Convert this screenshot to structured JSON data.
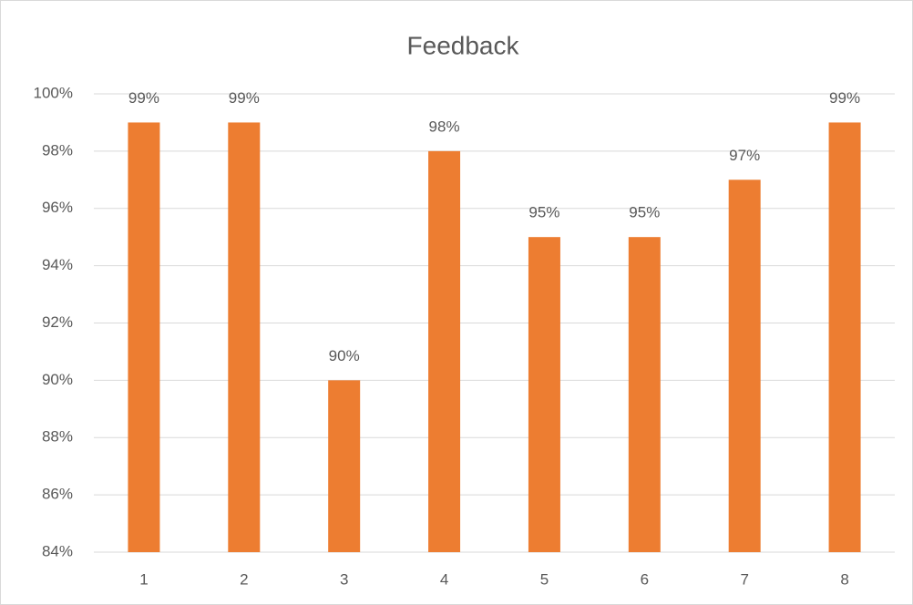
{
  "chart_data": {
    "type": "bar",
    "title": "Feedback",
    "categories": [
      "1",
      "2",
      "3",
      "4",
      "5",
      "6",
      "7",
      "8"
    ],
    "values": [
      99,
      99,
      90,
      98,
      95,
      95,
      97,
      99
    ],
    "value_labels": [
      "99%",
      "99%",
      "90%",
      "98%",
      "95%",
      "95%",
      "97%",
      "99%"
    ],
    "color": "#ed7d31",
    "ylim": [
      84,
      100
    ],
    "yticks": [
      {
        "value": 84,
        "label": "84%"
      },
      {
        "value": 86,
        "label": "86%"
      },
      {
        "value": 88,
        "label": "88%"
      },
      {
        "value": 90,
        "label": "90%"
      },
      {
        "value": 92,
        "label": "92%"
      },
      {
        "value": 94,
        "label": "94%"
      },
      {
        "value": 96,
        "label": "96%"
      },
      {
        "value": 98,
        "label": "98%"
      },
      {
        "value": 100,
        "label": "100%"
      }
    ],
    "grid": true
  }
}
